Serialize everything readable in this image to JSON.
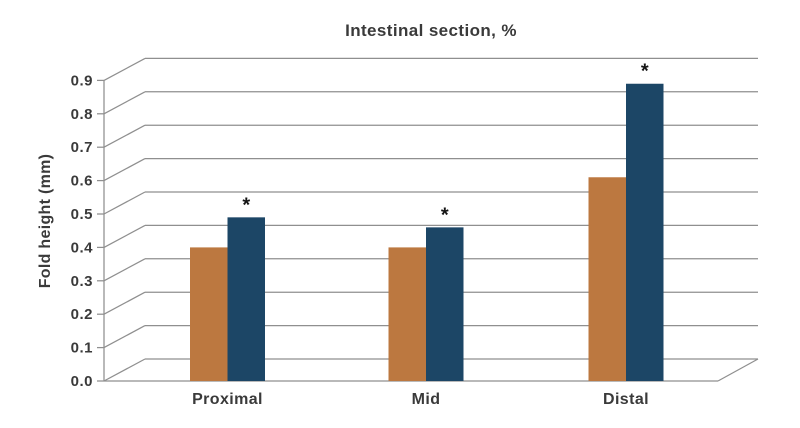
{
  "figure": {
    "background": "#ffffff"
  },
  "chart_data": {
    "type": "bar",
    "title": "Intestinal section, %",
    "ylabel": "Fold height (mm)",
    "xlabel": "",
    "categories": [
      "Proximal",
      "Mid",
      "Distal"
    ],
    "series": [
      {
        "color": "#bc7840",
        "values": [
          0.4,
          0.4,
          0.61
        ]
      },
      {
        "color": "#1c4666",
        "values": [
          0.49,
          0.46,
          0.89
        ],
        "significance_marks": [
          "*",
          "*",
          "*"
        ]
      }
    ],
    "yticks": [
      "0.0",
      "0.1",
      "0.2",
      "0.3",
      "0.4",
      "0.5",
      "0.6",
      "0.7",
      "0.8",
      "0.9"
    ],
    "ylim": [
      0,
      0.9
    ],
    "ytick_step": 0.1,
    "grid": true,
    "legend": false,
    "depth_3d_effect": true,
    "grid_color": "#8f8f8f",
    "text_color": "#3a3a3a"
  }
}
